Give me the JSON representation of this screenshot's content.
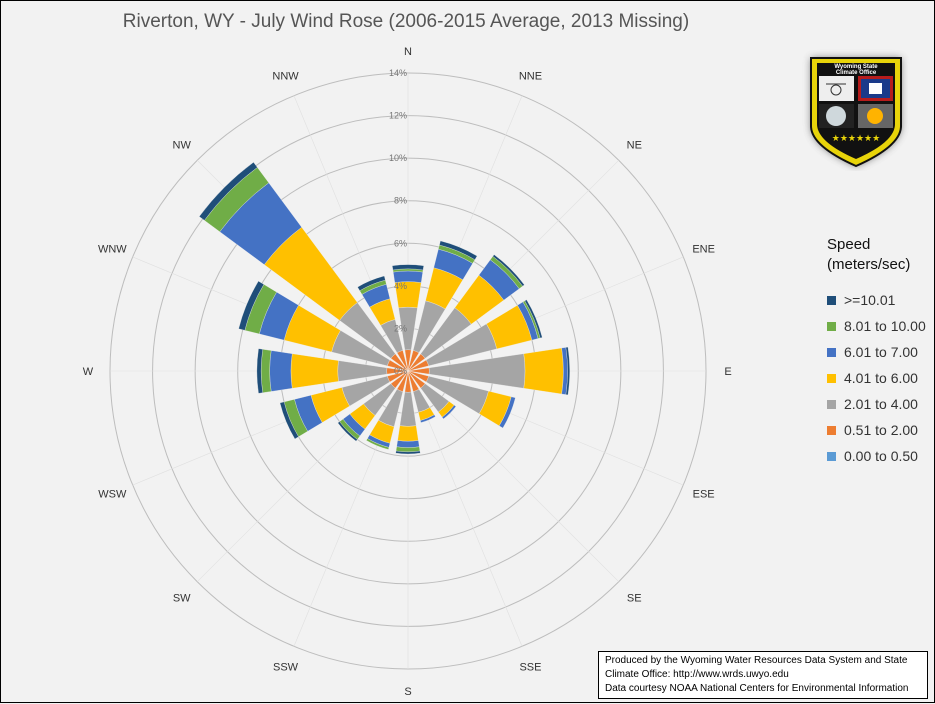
{
  "colors": {
    "ge10": "#1f4e79",
    "s8_10": "#70ad47",
    "s6_7": "#4472c4",
    "s4_6": "#ffc000",
    "s2_4": "#a5a5a5",
    "s05_2": "#ed7d31",
    "s0_05": "#5b9bd5"
  },
  "chart_data": {
    "type": "wind-rose",
    "title": "Riverton, WY - July Wind Rose (2006-2015 Average, 2013 Missing)",
    "directions": [
      "N",
      "NNE",
      "NE",
      "ENE",
      "E",
      "ESE",
      "SE",
      "SSE",
      "S",
      "SSW",
      "SW",
      "WSW",
      "W",
      "WNW",
      "NW",
      "NNW"
    ],
    "radial_ticks": [
      "0%",
      "2%",
      "4%",
      "6%",
      "8%",
      "10%",
      "12%",
      "14%"
    ],
    "rmax": 14,
    "legend_title_line1": "Speed",
    "legend_title_line2": "(meters/sec)",
    "legend_items": [
      {
        "label": ">=10.01",
        "key": "ge10"
      },
      {
        "label": "8.01 to 10.00",
        "key": "s8_10"
      },
      {
        "label": "6.01 to 7.00",
        "key": "s6_7"
      },
      {
        "label": "4.01 to 6.00",
        "key": "s4_6"
      },
      {
        "label": "2.01 to 4.00",
        "key": "s2_4"
      },
      {
        "label": "0.51 to 2.00",
        "key": "s05_2"
      },
      {
        "label": "0.00 to 0.50",
        "key": "s0_05"
      }
    ],
    "series_keys": [
      "s0_05",
      "s05_2",
      "s2_4",
      "s4_6",
      "s6_7",
      "s8_10",
      "ge10"
    ],
    "sectors": [
      {
        "dir": "N",
        "s0_05": 0,
        "s05_2": 1.0,
        "s2_4": 2.0,
        "s4_6": 1.2,
        "s6_7": 0.5,
        "s8_10": 0.1,
        "ge10": 0.2
      },
      {
        "dir": "NNE",
        "s0_05": 0,
        "s05_2": 1.0,
        "s2_4": 2.4,
        "s4_6": 1.6,
        "s6_7": 0.9,
        "s8_10": 0.2,
        "ge10": 0.2
      },
      {
        "dir": "NE",
        "s0_05": 0,
        "s05_2": 1.0,
        "s2_4": 2.7,
        "s4_6": 1.9,
        "s6_7": 0.9,
        "s8_10": 0.2,
        "ge10": 0.1
      },
      {
        "dir": "ENE",
        "s0_05": 0,
        "s05_2": 1.0,
        "s2_4": 3.3,
        "s4_6": 1.7,
        "s6_7": 0.3,
        "s8_10": 0.1,
        "ge10": 0.1
      },
      {
        "dir": "E",
        "s0_05": 0,
        "s05_2": 1.0,
        "s2_4": 4.5,
        "s4_6": 1.8,
        "s6_7": 0.2,
        "s8_10": 0.0,
        "ge10": 0.1
      },
      {
        "dir": "ESE",
        "s0_05": 0,
        "s05_2": 1.0,
        "s2_4": 2.9,
        "s4_6": 1.1,
        "s6_7": 0.2,
        "s8_10": 0.0,
        "ge10": 0.0
      },
      {
        "dir": "SE",
        "s0_05": 0,
        "s05_2": 1.0,
        "s2_4": 1.4,
        "s4_6": 0.3,
        "s6_7": 0.1,
        "s8_10": 0.0,
        "ge10": 0.0
      },
      {
        "dir": "SSE",
        "s0_05": 0,
        "s05_2": 1.0,
        "s2_4": 1.0,
        "s4_6": 0.4,
        "s6_7": 0.1,
        "s8_10": 0.0,
        "ge10": 0.0
      },
      {
        "dir": "S",
        "s0_05": 0,
        "s05_2": 1.0,
        "s2_4": 1.6,
        "s4_6": 0.7,
        "s6_7": 0.3,
        "s8_10": 0.2,
        "ge10": 0.1
      },
      {
        "dir": "SSW",
        "s0_05": 0,
        "s05_2": 1.0,
        "s2_4": 1.7,
        "s4_6": 0.8,
        "s6_7": 0.2,
        "s8_10": 0.1,
        "ge10": 0.0
      },
      {
        "dir": "SW",
        "s0_05": 0,
        "s05_2": 1.0,
        "s2_4": 1.6,
        "s4_6": 0.8,
        "s6_7": 0.4,
        "s8_10": 0.2,
        "ge10": 0.1
      },
      {
        "dir": "WSW",
        "s0_05": 0,
        "s05_2": 1.0,
        "s2_4": 2.2,
        "s4_6": 1.5,
        "s6_7": 0.8,
        "s8_10": 0.5,
        "ge10": 0.2
      },
      {
        "dir": "W",
        "s0_05": 0,
        "s05_2": 1.0,
        "s2_4": 2.3,
        "s4_6": 2.2,
        "s6_7": 1.0,
        "s8_10": 0.4,
        "ge10": 0.2
      },
      {
        "dir": "WNW",
        "s0_05": 0,
        "s05_2": 1.0,
        "s2_4": 2.7,
        "s4_6": 2.3,
        "s6_7": 1.2,
        "s8_10": 0.7,
        "ge10": 0.3
      },
      {
        "dir": "NW",
        "s0_05": 0,
        "s05_2": 1.0,
        "s2_4": 3.0,
        "s4_6": 4.4,
        "s6_7": 2.6,
        "s8_10": 0.9,
        "ge10": 0.3
      },
      {
        "dir": "NNW",
        "s0_05": 0,
        "s05_2": 1.0,
        "s2_4": 1.5,
        "s4_6": 1.0,
        "s6_7": 0.7,
        "s8_10": 0.2,
        "ge10": 0.2
      }
    ]
  },
  "logo": {
    "line1": "Wyoming State",
    "line2": "Climate Office",
    "stars": "★★★★★★"
  },
  "credits": {
    "line1": "Produced by the Wyoming Water Resources Data System and State",
    "line2": "Climate Office: http://www.wrds.uwyo.edu",
    "line3": "Data courtesy NOAA National Centers for Environmental Information"
  }
}
